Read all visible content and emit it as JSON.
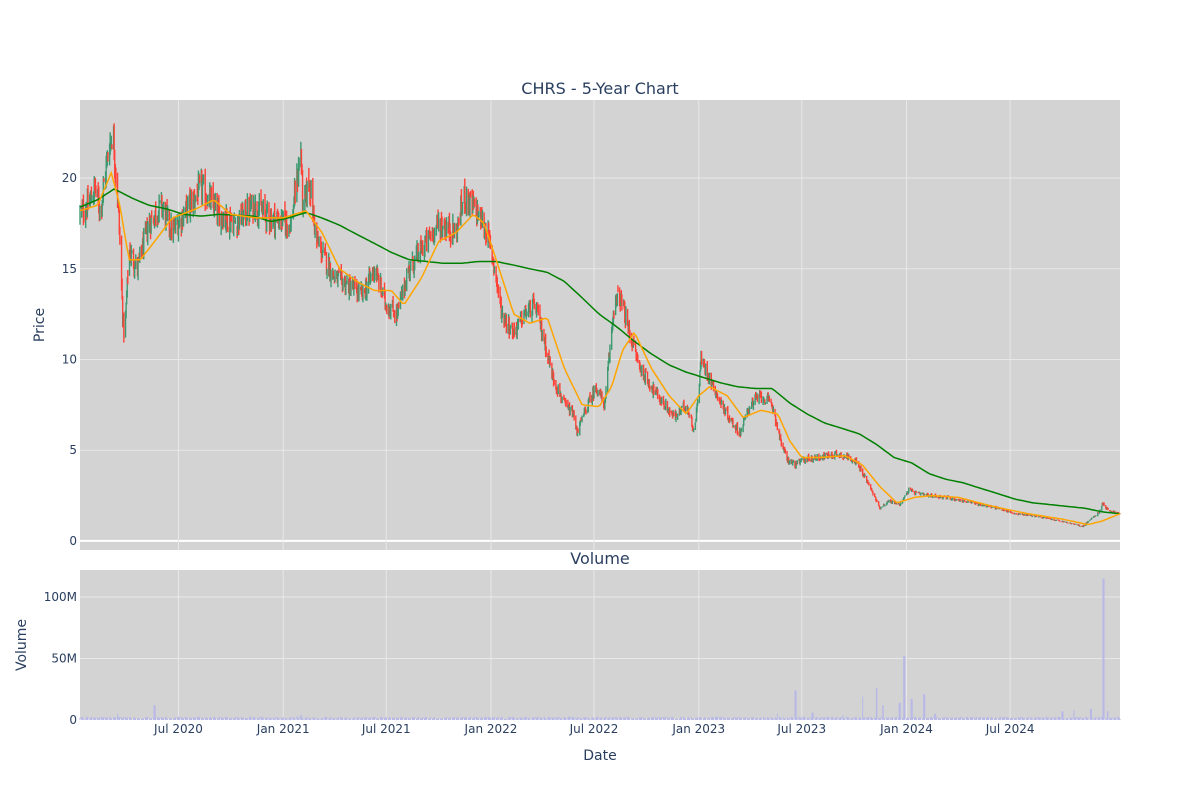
{
  "chart_data": [
    {
      "type": "candlestick",
      "title": "CHRS - 5-Year Chart",
      "ylabel": "Price",
      "ylim": [
        -0.5,
        24.3
      ],
      "yticks": [
        0,
        5,
        10,
        15,
        20
      ],
      "grid": true,
      "colors": {
        "plot_bg": "#d3d3d3",
        "grid": "#e8e8e8",
        "increasing": "#3d9970",
        "decreasing": "#ff4136",
        "short_ma": "#ffa500",
        "long_ma": "#008000"
      },
      "x_range": [
        "2020-01-10",
        "2025-01-10"
      ],
      "x_tick_labels": [
        "Jul 2020",
        "Jan 2021",
        "Jul 2021",
        "Jan 2022",
        "Jul 2022",
        "Jan 2023",
        "Jul 2023",
        "Jan 2024",
        "Jul 2024"
      ],
      "x_tick_dates": [
        "2020-07-01",
        "2021-01-01",
        "2021-07-01",
        "2022-01-01",
        "2022-07-01",
        "2023-01-01",
        "2023-07-01",
        "2024-01-01",
        "2024-07-01"
      ],
      "close_keypoints": [
        [
          "2020-01-10",
          18.0
        ],
        [
          "2020-01-25",
          18.5
        ],
        [
          "2020-02-05",
          19.5
        ],
        [
          "2020-02-15",
          18.2
        ],
        [
          "2020-03-01",
          21.8
        ],
        [
          "2020-03-08",
          22.5
        ],
        [
          "2020-03-18",
          18.0
        ],
        [
          "2020-03-25",
          12.5
        ],
        [
          "2020-03-28",
          11.0
        ],
        [
          "2020-04-05",
          16.0
        ],
        [
          "2020-04-20",
          15.0
        ],
        [
          "2020-05-10",
          17.5
        ],
        [
          "2020-06-01",
          18.5
        ],
        [
          "2020-06-20",
          17.0
        ],
        [
          "2020-07-10",
          18.0
        ],
        [
          "2020-08-10",
          19.5
        ],
        [
          "2020-09-10",
          18.0
        ],
        [
          "2020-10-10",
          17.5
        ],
        [
          "2020-11-10",
          18.5
        ],
        [
          "2020-12-10",
          17.8
        ],
        [
          "2021-01-15",
          17.5
        ],
        [
          "2021-02-01",
          21.5
        ],
        [
          "2021-02-05",
          18.0
        ],
        [
          "2021-02-15",
          20.0
        ],
        [
          "2021-03-01",
          16.5
        ],
        [
          "2021-04-01",
          14.5
        ],
        [
          "2021-05-01",
          14.0
        ],
        [
          "2021-05-20",
          13.5
        ],
        [
          "2021-06-10",
          15.0
        ],
        [
          "2021-07-01",
          13.0
        ],
        [
          "2021-07-20",
          12.5
        ],
        [
          "2021-08-10",
          15.0
        ],
        [
          "2021-09-10",
          16.5
        ],
        [
          "2021-10-01",
          17.5
        ],
        [
          "2021-11-01",
          17.0
        ],
        [
          "2021-11-15",
          19.0
        ],
        [
          "2021-12-10",
          18.0
        ],
        [
          "2021-12-25",
          17.0
        ],
        [
          "2022-01-05",
          15.5
        ],
        [
          "2022-01-20",
          12.5
        ],
        [
          "2022-02-10",
          11.5
        ],
        [
          "2022-03-01",
          12.5
        ],
        [
          "2022-03-20",
          13.0
        ],
        [
          "2022-04-05",
          11.0
        ],
        [
          "2022-04-20",
          9.0
        ],
        [
          "2022-05-10",
          7.5
        ],
        [
          "2022-05-25",
          7.0
        ],
        [
          "2022-06-01",
          6.0
        ],
        [
          "2022-06-20",
          7.5
        ],
        [
          "2022-07-05",
          8.5
        ],
        [
          "2022-07-20",
          7.5
        ],
        [
          "2022-08-05",
          13.0
        ],
        [
          "2022-08-15",
          13.5
        ],
        [
          "2022-09-01",
          11.5
        ],
        [
          "2022-09-20",
          9.5
        ],
        [
          "2022-10-10",
          8.5
        ],
        [
          "2022-11-01",
          7.5
        ],
        [
          "2022-11-20",
          6.8
        ],
        [
          "2022-12-10",
          7.5
        ],
        [
          "2022-12-25",
          6.0
        ],
        [
          "2023-01-05",
          10.0
        ],
        [
          "2023-01-20",
          9.0
        ],
        [
          "2023-02-10",
          7.5
        ],
        [
          "2023-03-01",
          6.5
        ],
        [
          "2023-03-15",
          6.0
        ],
        [
          "2023-04-01",
          7.5
        ],
        [
          "2023-04-20",
          8.0
        ],
        [
          "2023-05-10",
          7.5
        ],
        [
          "2023-05-25",
          5.5
        ],
        [
          "2023-06-05",
          4.5
        ],
        [
          "2023-06-20",
          4.2
        ],
        [
          "2023-07-05",
          4.5
        ],
        [
          "2023-08-01",
          4.6
        ],
        [
          "2023-09-01",
          4.8
        ],
        [
          "2023-10-01",
          4.5
        ],
        [
          "2023-10-20",
          3.5
        ],
        [
          "2023-11-05",
          2.5
        ],
        [
          "2023-11-15",
          1.8
        ],
        [
          "2023-12-01",
          2.2
        ],
        [
          "2023-12-20",
          2.0
        ],
        [
          "2024-01-05",
          2.8
        ],
        [
          "2024-01-20",
          2.6
        ],
        [
          "2024-02-10",
          2.5
        ],
        [
          "2024-03-10",
          2.4
        ],
        [
          "2024-04-10",
          2.2
        ],
        [
          "2024-05-10",
          2.0
        ],
        [
          "2024-06-10",
          1.8
        ],
        [
          "2024-07-10",
          1.5
        ],
        [
          "2024-08-10",
          1.4
        ],
        [
          "2024-09-10",
          1.2
        ],
        [
          "2024-10-10",
          1.0
        ],
        [
          "2024-11-05",
          0.8
        ],
        [
          "2024-11-20",
          1.2
        ],
        [
          "2024-12-05",
          1.6
        ],
        [
          "2024-12-10",
          2.1
        ],
        [
          "2024-12-20",
          1.7
        ],
        [
          "2025-01-10",
          1.5
        ]
      ],
      "short_ma_keypoints": [
        [
          "2020-01-10",
          18.2
        ],
        [
          "2020-02-10",
          18.5
        ],
        [
          "2020-03-05",
          20.3
        ],
        [
          "2020-03-20",
          18.5
        ],
        [
          "2020-04-05",
          15.5
        ],
        [
          "2020-04-25",
          15.5
        ],
        [
          "2020-05-20",
          16.5
        ],
        [
          "2020-06-20",
          17.8
        ],
        [
          "2020-08-01",
          18.3
        ],
        [
          "2020-09-01",
          18.8
        ],
        [
          "2020-10-01",
          18.0
        ],
        [
          "2020-11-15",
          17.8
        ],
        [
          "2021-01-01",
          17.8
        ],
        [
          "2021-02-10",
          18.2
        ],
        [
          "2021-03-10",
          17.0
        ],
        [
          "2021-04-10",
          15.0
        ],
        [
          "2021-05-10",
          14.3
        ],
        [
          "2021-06-10",
          13.8
        ],
        [
          "2021-07-10",
          13.8
        ],
        [
          "2021-08-01",
          13.0
        ],
        [
          "2021-09-01",
          14.5
        ],
        [
          "2021-10-01",
          16.5
        ],
        [
          "2021-11-01",
          17.0
        ],
        [
          "2021-12-01",
          18.0
        ],
        [
          "2021-12-20",
          17.5
        ],
        [
          "2022-01-10",
          15.5
        ],
        [
          "2022-02-10",
          12.5
        ],
        [
          "2022-03-10",
          12.0
        ],
        [
          "2022-04-10",
          12.3
        ],
        [
          "2022-05-10",
          9.5
        ],
        [
          "2022-06-10",
          7.5
        ],
        [
          "2022-07-10",
          7.4
        ],
        [
          "2022-08-01",
          8.5
        ],
        [
          "2022-08-20",
          10.5
        ],
        [
          "2022-09-10",
          11.5
        ],
        [
          "2022-10-10",
          9.5
        ],
        [
          "2022-11-10",
          8.0
        ],
        [
          "2022-12-10",
          7.0
        ],
        [
          "2023-01-01",
          8.0
        ],
        [
          "2023-01-20",
          8.5
        ],
        [
          "2023-02-20",
          8.0
        ],
        [
          "2023-03-20",
          6.8
        ],
        [
          "2023-04-20",
          7.2
        ],
        [
          "2023-05-20",
          7.0
        ],
        [
          "2023-06-10",
          5.5
        ],
        [
          "2023-07-01",
          4.6
        ],
        [
          "2023-08-01",
          4.6
        ],
        [
          "2023-09-15",
          4.7
        ],
        [
          "2023-10-15",
          4.2
        ],
        [
          "2023-11-15",
          3.0
        ],
        [
          "2023-12-15",
          2.1
        ],
        [
          "2024-01-15",
          2.4
        ],
        [
          "2024-02-15",
          2.5
        ],
        [
          "2024-04-01",
          2.4
        ],
        [
          "2024-06-01",
          1.9
        ],
        [
          "2024-08-01",
          1.5
        ],
        [
          "2024-10-01",
          1.2
        ],
        [
          "2024-11-15",
          0.9
        ],
        [
          "2024-12-10",
          1.1
        ],
        [
          "2025-01-10",
          1.5
        ]
      ],
      "long_ma_keypoints": [
        [
          "2020-01-10",
          18.4
        ],
        [
          "2020-02-10",
          18.8
        ],
        [
          "2020-03-10",
          19.4
        ],
        [
          "2020-04-10",
          18.9
        ],
        [
          "2020-05-10",
          18.5
        ],
        [
          "2020-06-10",
          18.3
        ],
        [
          "2020-07-10",
          18.0
        ],
        [
          "2020-08-10",
          17.9
        ],
        [
          "2020-09-10",
          18.0
        ],
        [
          "2020-11-10",
          17.9
        ],
        [
          "2020-12-10",
          17.6
        ],
        [
          "2021-01-10",
          17.8
        ],
        [
          "2021-02-10",
          18.1
        ],
        [
          "2021-03-10",
          17.8
        ],
        [
          "2021-04-10",
          17.4
        ],
        [
          "2021-05-10",
          16.9
        ],
        [
          "2021-06-10",
          16.4
        ],
        [
          "2021-07-10",
          15.9
        ],
        [
          "2021-08-10",
          15.5
        ],
        [
          "2021-09-10",
          15.4
        ],
        [
          "2021-10-10",
          15.3
        ],
        [
          "2021-11-10",
          15.3
        ],
        [
          "2021-12-10",
          15.4
        ],
        [
          "2022-01-10",
          15.4
        ],
        [
          "2022-02-10",
          15.2
        ],
        [
          "2022-03-10",
          15.0
        ],
        [
          "2022-04-10",
          14.8
        ],
        [
          "2022-05-10",
          14.3
        ],
        [
          "2022-06-10",
          13.4
        ],
        [
          "2022-07-10",
          12.5
        ],
        [
          "2022-08-10",
          11.8
        ],
        [
          "2022-09-10",
          11.0
        ],
        [
          "2022-10-10",
          10.3
        ],
        [
          "2022-11-10",
          9.7
        ],
        [
          "2022-12-10",
          9.3
        ],
        [
          "2023-01-10",
          9.0
        ],
        [
          "2023-02-10",
          8.7
        ],
        [
          "2023-03-10",
          8.5
        ],
        [
          "2023-04-10",
          8.4
        ],
        [
          "2023-05-10",
          8.4
        ],
        [
          "2023-06-10",
          7.6
        ],
        [
          "2023-07-10",
          7.0
        ],
        [
          "2023-08-10",
          6.5
        ],
        [
          "2023-09-10",
          6.2
        ],
        [
          "2023-10-10",
          5.9
        ],
        [
          "2023-11-10",
          5.3
        ],
        [
          "2023-12-10",
          4.6
        ],
        [
          "2024-01-10",
          4.3
        ],
        [
          "2024-02-10",
          3.7
        ],
        [
          "2024-03-10",
          3.4
        ],
        [
          "2024-04-10",
          3.2
        ],
        [
          "2024-05-10",
          2.9
        ],
        [
          "2024-06-10",
          2.6
        ],
        [
          "2024-07-10",
          2.3
        ],
        [
          "2024-08-10",
          2.1
        ],
        [
          "2024-09-10",
          2.0
        ],
        [
          "2024-10-10",
          1.9
        ],
        [
          "2024-11-10",
          1.8
        ],
        [
          "2024-12-10",
          1.6
        ],
        [
          "2025-01-10",
          1.5
        ]
      ]
    },
    {
      "type": "bar",
      "title": "Volume",
      "xlabel": "Date",
      "ylabel": "Volume",
      "ylim": [
        0,
        122000000
      ],
      "yticks": [
        0,
        50000000,
        100000000
      ],
      "ytick_labels": [
        "0",
        "50M",
        "100M"
      ],
      "grid": true,
      "colors": {
        "plot_bg": "#d3d3d3",
        "bar": "#b9b9e8"
      },
      "baseline_volume": 1500000,
      "volume_spikes": [
        [
          "2020-03-15",
          5000000
        ],
        [
          "2020-05-20",
          12000000
        ],
        [
          "2021-02-01",
          4000000
        ],
        [
          "2023-05-20",
          5000000
        ],
        [
          "2023-06-20",
          24000000
        ],
        [
          "2023-07-20",
          6000000
        ],
        [
          "2023-09-10",
          4000000
        ],
        [
          "2023-10-15",
          19000000
        ],
        [
          "2023-11-10",
          26000000
        ],
        [
          "2023-11-20",
          12000000
        ],
        [
          "2023-12-20",
          14000000
        ],
        [
          "2023-12-28",
          52000000
        ],
        [
          "2024-01-10",
          17000000
        ],
        [
          "2024-02-01",
          21000000
        ],
        [
          "2024-02-20",
          5000000
        ],
        [
          "2024-10-01",
          7000000
        ],
        [
          "2024-10-20",
          8000000
        ],
        [
          "2024-11-20",
          9000000
        ],
        [
          "2024-12-12",
          115000000
        ],
        [
          "2024-12-20",
          7000000
        ]
      ]
    }
  ]
}
